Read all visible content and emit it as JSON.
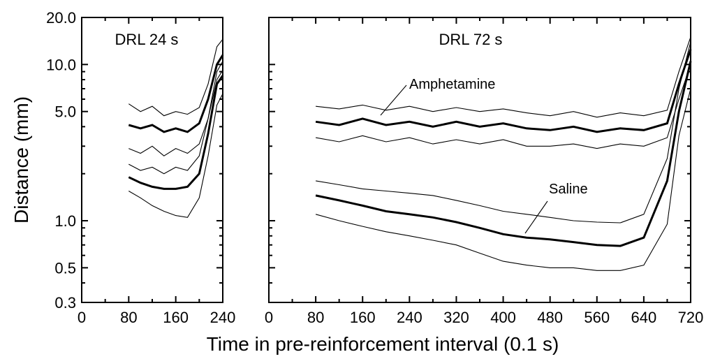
{
  "chart_data": {
    "type": "line",
    "ylabel": "Distance (mm)",
    "xlabel": "Time in pre-reinforcement interval (0.1 s)",
    "yscale": "log",
    "ylim": [
      0.3,
      20.0
    ],
    "yticks": [
      "20.0",
      "10.0",
      "5.0",
      "1.0",
      "0.5",
      "0.3"
    ],
    "yticks_values": [
      20,
      10,
      5,
      1,
      0.5,
      0.3
    ],
    "panels": [
      {
        "title": "DRL 24 s",
        "xlim": [
          0,
          240
        ],
        "xticks": [
          "0",
          "80",
          "160",
          "240"
        ],
        "xticks_values": [
          0,
          80,
          160,
          240
        ],
        "series": [
          {
            "group": "amphetamine",
            "kind": "band-upper",
            "x": [
              80,
              100,
              120,
              140,
              160,
              180,
              200,
              215,
              230,
              240
            ],
            "y": [
              5.6,
              5.0,
              5.4,
              4.7,
              5.0,
              4.8,
              5.3,
              7.5,
              13.0,
              14.5
            ]
          },
          {
            "group": "amphetamine",
            "kind": "mean",
            "x": [
              80,
              100,
              120,
              140,
              160,
              180,
              200,
              215,
              230,
              240
            ],
            "y": [
              4.1,
              3.9,
              4.1,
              3.7,
              3.9,
              3.7,
              4.2,
              6.0,
              10.0,
              11.5
            ]
          },
          {
            "group": "amphetamine",
            "kind": "band-lower",
            "x": [
              80,
              100,
              120,
              140,
              160,
              180,
              200,
              215,
              230,
              240
            ],
            "y": [
              2.9,
              2.7,
              3.0,
              2.6,
              2.9,
              2.7,
              3.1,
              4.5,
              8.0,
              9.2
            ]
          },
          {
            "group": "saline",
            "kind": "band-upper",
            "x": [
              80,
              100,
              120,
              140,
              160,
              180,
              200,
              215,
              230,
              240
            ],
            "y": [
              2.3,
              2.1,
              2.2,
              2.0,
              2.2,
              2.1,
              2.6,
              4.5,
              9.0,
              10.5
            ]
          },
          {
            "group": "saline",
            "kind": "mean",
            "x": [
              80,
              100,
              120,
              140,
              160,
              180,
              200,
              215,
              230,
              240
            ],
            "y": [
              1.9,
              1.75,
              1.65,
              1.6,
              1.6,
              1.65,
              2.0,
              3.6,
              7.5,
              8.5
            ]
          },
          {
            "group": "saline",
            "kind": "band-lower",
            "x": [
              80,
              100,
              120,
              140,
              160,
              180,
              200,
              215,
              230,
              240
            ],
            "y": [
              1.55,
              1.4,
              1.25,
              1.15,
              1.08,
              1.05,
              1.4,
              2.6,
              5.5,
              6.5
            ]
          }
        ]
      },
      {
        "title": "DRL 72 s",
        "xlim": [
          0,
          720
        ],
        "xticks": [
          "0",
          "80",
          "160",
          "240",
          "320",
          "400",
          "480",
          "560",
          "640",
          "720"
        ],
        "xticks_values": [
          0,
          80,
          160,
          240,
          320,
          400,
          480,
          560,
          640,
          720
        ],
        "annotations": [
          "Amphetamine",
          "Saline"
        ],
        "series": [
          {
            "group": "amphetamine",
            "kind": "band-upper",
            "x": [
              80,
              120,
              160,
              200,
              240,
              280,
              320,
              360,
              400,
              440,
              480,
              520,
              560,
              600,
              640,
              680,
              700,
              720
            ],
            "y": [
              5.4,
              5.2,
              5.5,
              5.1,
              5.4,
              5.0,
              5.3,
              5.0,
              5.2,
              4.9,
              4.7,
              5.0,
              4.6,
              4.9,
              4.7,
              5.1,
              9.0,
              15.0
            ]
          },
          {
            "group": "amphetamine",
            "kind": "mean",
            "x": [
              80,
              120,
              160,
              200,
              240,
              280,
              320,
              360,
              400,
              440,
              480,
              520,
              560,
              600,
              640,
              680,
              700,
              720
            ],
            "y": [
              4.3,
              4.1,
              4.5,
              4.1,
              4.3,
              4.0,
              4.3,
              4.0,
              4.2,
              3.9,
              3.8,
              4.0,
              3.7,
              3.9,
              3.8,
              4.2,
              7.5,
              12.5
            ]
          },
          {
            "group": "amphetamine",
            "kind": "band-lower",
            "x": [
              80,
              120,
              160,
              200,
              240,
              280,
              320,
              360,
              400,
              440,
              480,
              520,
              560,
              600,
              640,
              680,
              700,
              720
            ],
            "y": [
              3.4,
              3.2,
              3.5,
              3.2,
              3.4,
              3.1,
              3.3,
              3.1,
              3.3,
              3.0,
              3.0,
              3.1,
              2.9,
              3.1,
              3.0,
              3.4,
              6.0,
              10.0
            ]
          },
          {
            "group": "saline",
            "kind": "band-upper",
            "x": [
              80,
              120,
              160,
              200,
              240,
              280,
              320,
              360,
              400,
              440,
              480,
              520,
              560,
              600,
              640,
              680,
              700,
              720
            ],
            "y": [
              1.8,
              1.7,
              1.6,
              1.55,
              1.5,
              1.45,
              1.35,
              1.25,
              1.15,
              1.1,
              1.05,
              1.0,
              0.98,
              0.97,
              1.1,
              2.5,
              7.0,
              14.0
            ]
          },
          {
            "group": "saline",
            "kind": "mean",
            "x": [
              80,
              120,
              160,
              200,
              240,
              280,
              320,
              360,
              400,
              440,
              480,
              520,
              560,
              600,
              640,
              680,
              700,
              720
            ],
            "y": [
              1.45,
              1.35,
              1.25,
              1.15,
              1.1,
              1.05,
              0.98,
              0.9,
              0.82,
              0.78,
              0.76,
              0.73,
              0.7,
              0.69,
              0.78,
              1.8,
              5.0,
              10.5
            ]
          },
          {
            "group": "saline",
            "kind": "band-lower",
            "x": [
              80,
              120,
              160,
              200,
              240,
              280,
              320,
              360,
              400,
              440,
              480,
              520,
              560,
              600,
              640,
              680,
              700,
              720
            ],
            "y": [
              1.1,
              1.0,
              0.92,
              0.85,
              0.8,
              0.75,
              0.7,
              0.62,
              0.55,
              0.52,
              0.5,
              0.5,
              0.48,
              0.48,
              0.52,
              0.95,
              3.5,
              7.0
            ]
          }
        ]
      }
    ]
  }
}
